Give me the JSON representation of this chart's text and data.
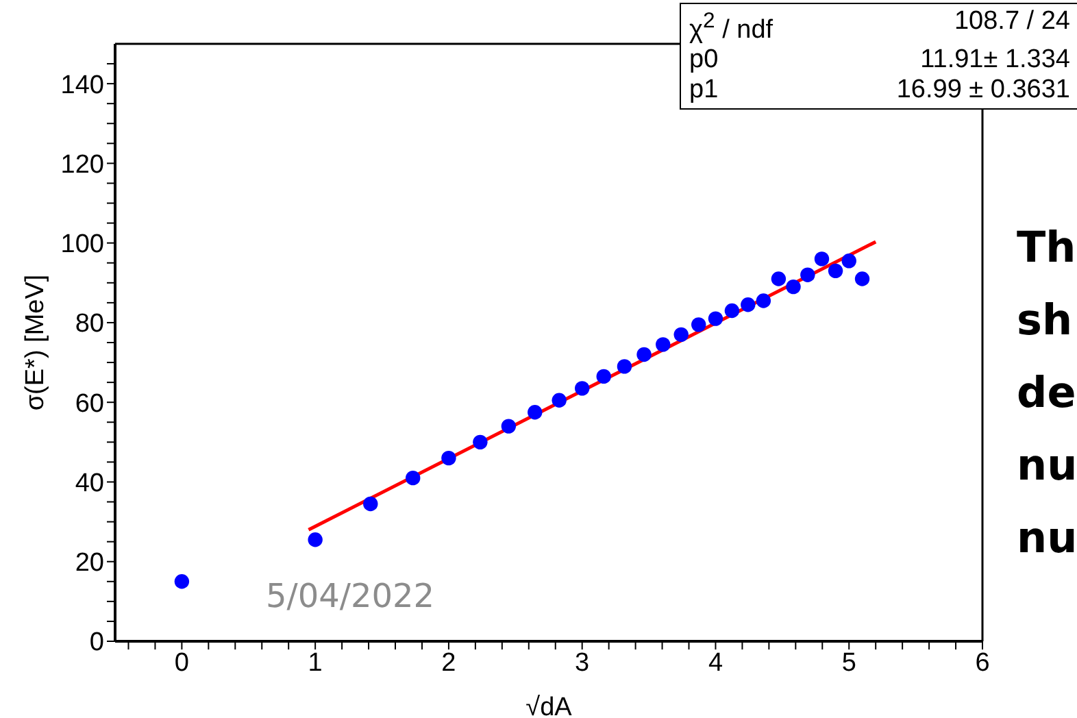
{
  "chart_data": {
    "type": "scatter",
    "xlabel": "√dA",
    "ylabel": "σ(E*) [MeV]",
    "xlim": [
      -0.5,
      6
    ],
    "ylim": [
      0,
      150
    ],
    "xticks": [
      {
        "value": -0.4,
        "label": null
      },
      {
        "value": -0.2,
        "label": null
      },
      0,
      {
        "value": 0.2,
        "label": null
      },
      {
        "value": 0.4,
        "label": null
      },
      {
        "value": 0.6,
        "label": null
      },
      {
        "value": 0.8,
        "label": null
      },
      1,
      {
        "value": 1.2,
        "label": null
      },
      {
        "value": 1.4,
        "label": null
      },
      {
        "value": 1.6,
        "label": null
      },
      {
        "value": 1.8,
        "label": null
      },
      2,
      {
        "value": 2.2,
        "label": null
      },
      {
        "value": 2.4,
        "label": null
      },
      {
        "value": 2.6,
        "label": null
      },
      {
        "value": 2.8,
        "label": null
      },
      3,
      {
        "value": 3.2,
        "label": null
      },
      {
        "value": 3.4,
        "label": null
      },
      {
        "value": 3.6,
        "label": null
      },
      {
        "value": 3.8,
        "label": null
      },
      4,
      {
        "value": 4.2,
        "label": null
      },
      {
        "value": 4.4,
        "label": null
      },
      {
        "value": 4.6,
        "label": null
      },
      {
        "value": 4.8,
        "label": null
      },
      5,
      {
        "value": 5.2,
        "label": null
      },
      {
        "value": 5.4,
        "label": null
      },
      {
        "value": 5.6,
        "label": null
      },
      {
        "value": 5.8,
        "label": null
      },
      6
    ],
    "yticks": [
      0,
      {
        "value": 5,
        "label": null
      },
      {
        "value": 10,
        "label": null
      },
      {
        "value": 15,
        "label": null
      },
      20,
      {
        "value": 25,
        "label": null
      },
      {
        "value": 30,
        "label": null
      },
      {
        "value": 35,
        "label": null
      },
      40,
      {
        "value": 45,
        "label": null
      },
      {
        "value": 50,
        "label": null
      },
      {
        "value": 55,
        "label": null
      },
      60,
      {
        "value": 65,
        "label": null
      },
      {
        "value": 70,
        "label": null
      },
      {
        "value": 75,
        "label": null
      },
      80,
      {
        "value": 85,
        "label": null
      },
      {
        "value": 90,
        "label": null
      },
      {
        "value": 95,
        "label": null
      },
      100,
      {
        "value": 105,
        "label": null
      },
      {
        "value": 110,
        "label": null
      },
      {
        "value": 115,
        "label": null
      },
      120,
      {
        "value": 125,
        "label": null
      },
      {
        "value": 130,
        "label": null
      },
      {
        "value": 135,
        "label": null
      },
      140,
      {
        "value": 145,
        "label": null
      }
    ],
    "series": [
      {
        "color": "#0000ff",
        "marker": "circle",
        "x": [
          0,
          1,
          1.414,
          1.732,
          2,
          2.236,
          2.449,
          2.646,
          2.828,
          3,
          3.162,
          3.317,
          3.464,
          3.606,
          3.742,
          3.873,
          4,
          4.123,
          4.243,
          4.359,
          4.472,
          4.583,
          4.69,
          4.796,
          4.899,
          5,
          5.099
        ],
        "values": [
          15,
          25.5,
          34.5,
          41,
          46,
          50,
          54,
          57.5,
          60.5,
          63.5,
          66.5,
          69,
          72,
          74.5,
          77,
          79.5,
          81,
          83,
          84.5,
          85.5,
          91,
          89,
          92,
          96,
          93,
          95.5,
          91
        ]
      },
      {
        "type": "line",
        "color": "#ff0000",
        "x": [
          0.95,
          5.2
        ],
        "values": [
          28,
          100.3
        ],
        "line_style": "solid"
      }
    ],
    "annotations": [
      "χ$^{2}$ / ndf",
      "108.7 / 24",
      "p0",
      "11.91± 1.334",
      "p1",
      "16.99 ± 0.3631",
      "5/04/2022",
      "Th",
      "sh",
      "de",
      "nu",
      "nu"
    ]
  }
}
